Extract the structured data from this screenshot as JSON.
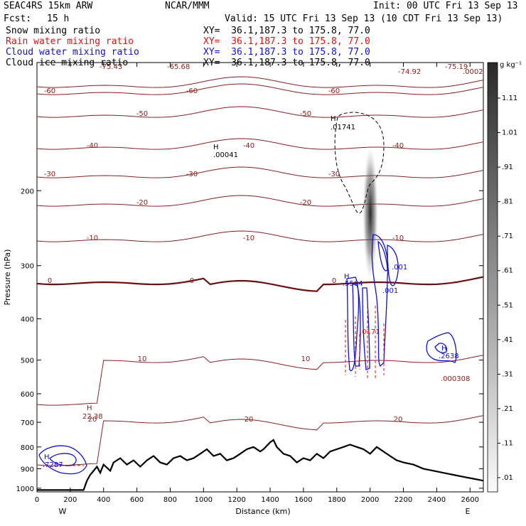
{
  "header": {
    "model": "SEAC4RS 15km ARW",
    "org": "NCAR/MMM",
    "init": "Init: 00 UTC Fri 13 Sep 13",
    "fcst_label": "Fcst:",
    "fcst_value": "15 h",
    "valid": "Valid: 15 UTC Fri 13 Sep 13 (10 CDT Fri 13 Sep 13)",
    "xy": "XY=  36.1,187.3 to 175.8, 77.0"
  },
  "fields": [
    {
      "label": "Snow mixing ratio",
      "color": "#000000"
    },
    {
      "label": "Rain water mixing ratio",
      "color": "#e01010"
    },
    {
      "label": "Cloud water mixing ratio",
      "color": "#1010d0"
    },
    {
      "label": "Cloud ice mixing ratio",
      "color": "#000000"
    }
  ],
  "colorbar": {
    "unit": "g kg⁻¹",
    "labels": [
      "1.11",
      "1.01",
      ".91",
      ".81",
      ".71",
      ".61",
      ".51",
      ".41",
      ".31",
      ".21",
      ".11",
      ".01"
    ]
  },
  "chart_data": {
    "type": "cross-section",
    "xlabel": "Distance (km)",
    "ylabel": "Pressure (hPa)",
    "x_ticks": [
      "0",
      "200",
      "400",
      "600",
      "800",
      "1000",
      "1200",
      "1400",
      "1600",
      "1800",
      "2000",
      "2200",
      "2400",
      "2600"
    ],
    "y_ticks": [
      "200",
      "300",
      "400",
      "500",
      "600",
      "700",
      "800",
      "900",
      "1000"
    ],
    "xlim": [
      0,
      2680
    ],
    "ylim": [
      1020,
      100
    ],
    "y_scale": "log",
    "endpoints": [
      "W",
      "E"
    ],
    "terrain_km": [
      0,
      280,
      300,
      320,
      360,
      380,
      400,
      440,
      460,
      500,
      540,
      580,
      620,
      660,
      700,
      740,
      780,
      820,
      860,
      900,
      940,
      980,
      1020,
      1060,
      1100,
      1140,
      1180,
      1220,
      1260,
      1300,
      1340,
      1360,
      1400,
      1420,
      1440,
      1480,
      1520,
      1560,
      1600,
      1640,
      1680,
      1720,
      1760,
      1800,
      1840,
      1880,
      1920,
      1960,
      2000,
      2040,
      2080,
      2120,
      2160,
      2200,
      2260,
      2320,
      2380,
      2440,
      2500,
      2560,
      2620,
      2680
    ],
    "terrain_hpa": [
      1010,
      1010,
      960,
      930,
      890,
      920,
      880,
      910,
      870,
      850,
      880,
      860,
      890,
      860,
      840,
      870,
      880,
      850,
      840,
      860,
      850,
      830,
      810,
      840,
      830,
      860,
      850,
      830,
      810,
      800,
      820,
      810,
      780,
      770,
      800,
      830,
      840,
      870,
      850,
      860,
      830,
      850,
      820,
      810,
      800,
      790,
      800,
      810,
      830,
      800,
      820,
      840,
      860,
      870,
      880,
      900,
      910,
      920,
      930,
      940,
      950,
      960
    ],
    "temperature_contours_C": [
      -70,
      -60,
      -50,
      -40,
      -30,
      -20,
      -10,
      0,
      10,
      20
    ],
    "temperature_labels": [
      "-75.43",
      "-65.68",
      "-74.92",
      "-75.19",
      ".0002",
      "-60",
      "-50",
      "-40",
      "-30",
      "-20",
      "-10",
      "0",
      "10",
      "20"
    ],
    "highs": [
      {
        "label": "H",
        "value": ".00041"
      },
      {
        "label": "H",
        "value": ".01741"
      },
      {
        "label": "H",
        "value": ".5504"
      },
      {
        "label": "H",
        "value": ".2638"
      },
      {
        "label": "H",
        "value": "22.38"
      },
      {
        "label": "H",
        "value": ".7287"
      }
    ],
    "other_labels": [
      ".001",
      ".001",
      ".0171",
      ".000308"
    ]
  }
}
